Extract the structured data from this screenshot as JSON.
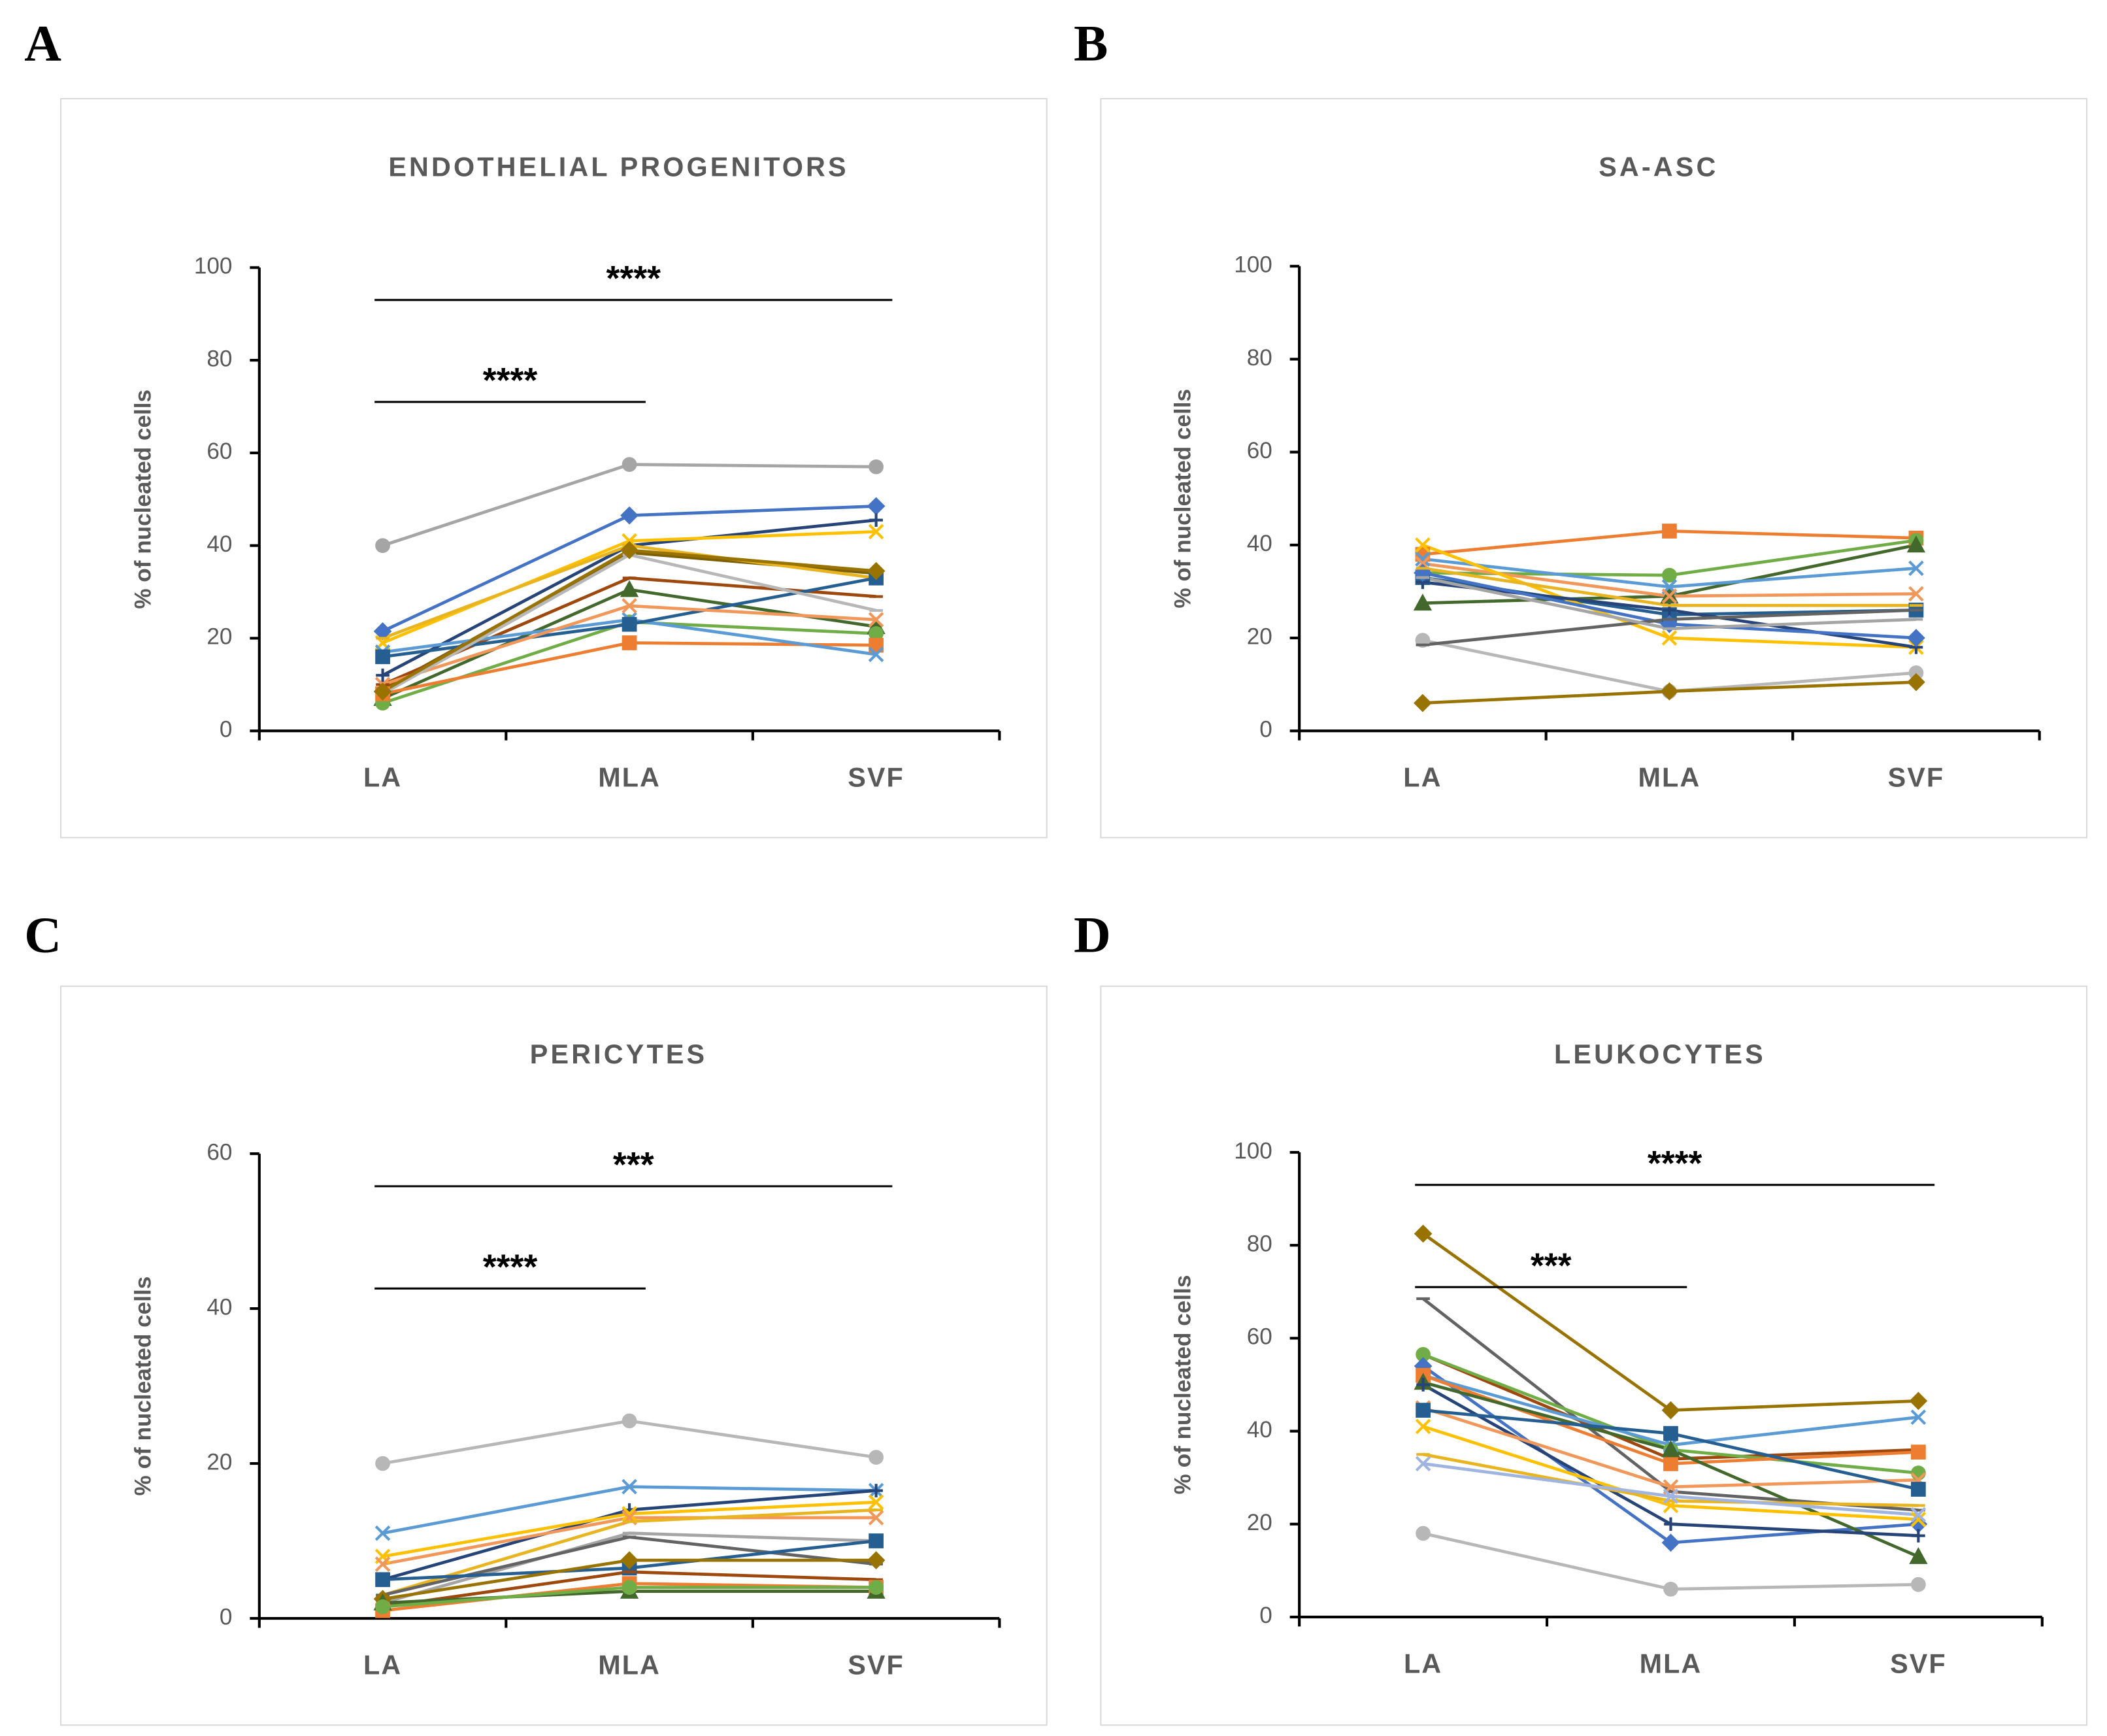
{
  "chart_data": [
    {
      "type": "line",
      "panel": "A",
      "title": "ENDOTHELIAL  PROGENITORS",
      "y_label": "% of nucleated cells",
      "categories": [
        "LA",
        "MLA",
        "SVF"
      ],
      "ylim": [
        0,
        100
      ],
      "yticks": [
        0,
        20,
        40,
        60,
        80,
        100
      ],
      "annotations": [
        {
          "text": "****",
          "between": [
            "LA",
            "SVF"
          ]
        },
        {
          "text": "****",
          "between": [
            "LA",
            "MLA"
          ]
        }
      ],
      "series": [
        {
          "color": "#a5a5a5",
          "marker": "circle",
          "values": [
            40,
            57.5,
            57
          ]
        },
        {
          "color": "#4472c4",
          "marker": "diamond",
          "values": [
            21.5,
            46.5,
            48.5
          ]
        },
        {
          "color": "#264478",
          "marker": "plus",
          "values": [
            12,
            40,
            45.5
          ]
        },
        {
          "color": "#ffc000",
          "marker": "x",
          "values": [
            19,
            41,
            43
          ]
        },
        {
          "color": "#7f6000",
          "marker": "dash",
          "values": [
            9,
            38.5,
            34
          ]
        },
        {
          "color": "#e8b520",
          "marker": "dash",
          "values": [
            20,
            40,
            33
          ]
        },
        {
          "color": "#9e480e",
          "marker": "dash",
          "values": [
            10,
            33,
            29
          ]
        },
        {
          "color": "#43682b",
          "marker": "triangle",
          "values": [
            7,
            30.5,
            22.5
          ]
        },
        {
          "color": "#70ad47",
          "marker": "circle",
          "values": [
            6,
            23.5,
            21
          ]
        },
        {
          "color": "#ed7d31",
          "marker": "square",
          "values": [
            8,
            19,
            18.5
          ]
        },
        {
          "color": "#5b9bd5",
          "marker": "x",
          "values": [
            17,
            24,
            16.5
          ]
        },
        {
          "color": "#255e91",
          "marker": "square",
          "values": [
            16,
            23,
            33
          ]
        },
        {
          "color": "#f1975a",
          "marker": "x",
          "values": [
            10,
            27,
            24
          ]
        },
        {
          "color": "#b7b7b7",
          "marker": "dash",
          "values": [
            8,
            38,
            26
          ]
        },
        {
          "color": "#997300",
          "marker": "diamond",
          "values": [
            8.5,
            39,
            34.5
          ]
        }
      ]
    },
    {
      "type": "line",
      "panel": "B",
      "title": "SA-ASC",
      "y_label": "% of nucleated cells",
      "categories": [
        "LA",
        "MLA",
        "SVF"
      ],
      "ylim": [
        0,
        100
      ],
      "yticks": [
        0,
        20,
        40,
        60,
        80,
        100
      ],
      "annotations": [],
      "series": [
        {
          "color": "#ed7d31",
          "marker": "square",
          "values": [
            38,
            43,
            41.5
          ]
        },
        {
          "color": "#70ad47",
          "marker": "circle",
          "values": [
            34,
            33.5,
            41
          ]
        },
        {
          "color": "#43682b",
          "marker": "triangle",
          "values": [
            27.5,
            29,
            40
          ]
        },
        {
          "color": "#5b9bd5",
          "marker": "x",
          "values": [
            37,
            31,
            35
          ]
        },
        {
          "color": "#f1975a",
          "marker": "x",
          "values": [
            36,
            29,
            29.5
          ]
        },
        {
          "color": "#255e91",
          "marker": "square",
          "values": [
            33,
            25,
            26
          ]
        },
        {
          "color": "#ffc000",
          "marker": "x",
          "values": [
            40,
            20,
            18
          ]
        },
        {
          "color": "#264478",
          "marker": "plus",
          "values": [
            32,
            26,
            18
          ]
        },
        {
          "color": "#4472c4",
          "marker": "diamond",
          "values": [
            34,
            23,
            20
          ]
        },
        {
          "color": "#b7b7b7",
          "marker": "circle",
          "values": [
            19.5,
            8.5,
            12.5
          ]
        },
        {
          "color": "#636363",
          "marker": "dash",
          "values": [
            18.5,
            24,
            26
          ]
        },
        {
          "color": "#997300",
          "marker": "diamond",
          "values": [
            6,
            8.5,
            10.5
          ]
        },
        {
          "color": "#e8b520",
          "marker": "dash",
          "values": [
            35,
            27,
            27
          ]
        },
        {
          "color": "#a5a5a5",
          "marker": "dash",
          "values": [
            33,
            22,
            24
          ]
        }
      ]
    },
    {
      "type": "line",
      "panel": "C",
      "title": "PERICYTES",
      "y_label": "% of nucleated cells",
      "categories": [
        "LA",
        "MLA",
        "SVF"
      ],
      "ylim": [
        0,
        60
      ],
      "yticks": [
        0,
        20,
        40,
        60
      ],
      "annotations": [
        {
          "text": "***",
          "between": [
            "LA",
            "SVF"
          ]
        },
        {
          "text": "****",
          "between": [
            "LA",
            "MLA"
          ]
        }
      ],
      "series": [
        {
          "color": "#b7b7b7",
          "marker": "circle",
          "values": [
            20,
            25.5,
            20.8
          ]
        },
        {
          "color": "#5b9bd5",
          "marker": "x",
          "values": [
            11,
            17,
            16.5
          ]
        },
        {
          "color": "#264478",
          "marker": "plus",
          "values": [
            5,
            14,
            16.5
          ]
        },
        {
          "color": "#ffc000",
          "marker": "x",
          "values": [
            8,
            13.5,
            15
          ]
        },
        {
          "color": "#f1975a",
          "marker": "x",
          "values": [
            7,
            13,
            13
          ]
        },
        {
          "color": "#e8b520",
          "marker": "dash",
          "values": [
            3,
            12.5,
            14
          ]
        },
        {
          "color": "#a5a5a5",
          "marker": "dash",
          "values": [
            2,
            11,
            10
          ]
        },
        {
          "color": "#636363",
          "marker": "dash",
          "values": [
            3,
            10.5,
            7
          ]
        },
        {
          "color": "#255e91",
          "marker": "square",
          "values": [
            5,
            6.5,
            10
          ]
        },
        {
          "color": "#997300",
          "marker": "diamond",
          "values": [
            2.5,
            7.5,
            7.5
          ]
        },
        {
          "color": "#9e480e",
          "marker": "dash",
          "values": [
            1.5,
            6,
            5
          ]
        },
        {
          "color": "#ed7d31",
          "marker": "square",
          "values": [
            1,
            4.5,
            4
          ]
        },
        {
          "color": "#43682b",
          "marker": "triangle",
          "values": [
            2,
            3.5,
            3.5
          ]
        },
        {
          "color": "#70ad47",
          "marker": "circle",
          "values": [
            1.5,
            4,
            4
          ]
        }
      ]
    },
    {
      "type": "line",
      "panel": "D",
      "title": "LEUKOCYTES",
      "y_label": "% of nucleated cells",
      "categories": [
        "LA",
        "MLA",
        "SVF"
      ],
      "ylim": [
        0,
        100
      ],
      "yticks": [
        0,
        20,
        40,
        60,
        80,
        100
      ],
      "annotations": [
        {
          "text": "****",
          "between": [
            "LA",
            "SVF"
          ]
        },
        {
          "text": "***",
          "between": [
            "LA",
            "MLA"
          ]
        }
      ],
      "series": [
        {
          "color": "#997300",
          "marker": "diamond",
          "values": [
            82.5,
            44.5,
            46.5
          ]
        },
        {
          "color": "#636363",
          "marker": "dash",
          "values": [
            68.5,
            27,
            23
          ]
        },
        {
          "color": "#9e480e",
          "marker": "dash",
          "values": [
            56.5,
            34,
            36
          ]
        },
        {
          "color": "#70ad47",
          "marker": "circle",
          "values": [
            56.5,
            36,
            31
          ]
        },
        {
          "color": "#4472c4",
          "marker": "diamond",
          "values": [
            54,
            16,
            20
          ]
        },
        {
          "color": "#5b9bd5",
          "marker": "x",
          "values": [
            52,
            37,
            43
          ]
        },
        {
          "color": "#ed7d31",
          "marker": "square",
          "values": [
            52,
            33,
            35.5
          ]
        },
        {
          "color": "#43682b",
          "marker": "triangle",
          "values": [
            50.5,
            36,
            13
          ]
        },
        {
          "color": "#264478",
          "marker": "plus",
          "values": [
            50,
            20,
            17.5
          ]
        },
        {
          "color": "#f1975a",
          "marker": "x",
          "values": [
            45,
            28,
            29.5
          ]
        },
        {
          "color": "#255e91",
          "marker": "square",
          "values": [
            44.5,
            39.5,
            27.5
          ]
        },
        {
          "color": "#ffc000",
          "marker": "x",
          "values": [
            41,
            24,
            21
          ]
        },
        {
          "color": "#e8b520",
          "marker": "dash",
          "values": [
            35,
            25,
            24
          ]
        },
        {
          "color": "#9fb4e0",
          "marker": "x",
          "values": [
            33,
            26,
            22
          ]
        },
        {
          "color": "#b7b7b7",
          "marker": "circle",
          "values": [
            18,
            6,
            7
          ]
        }
      ]
    }
  ]
}
